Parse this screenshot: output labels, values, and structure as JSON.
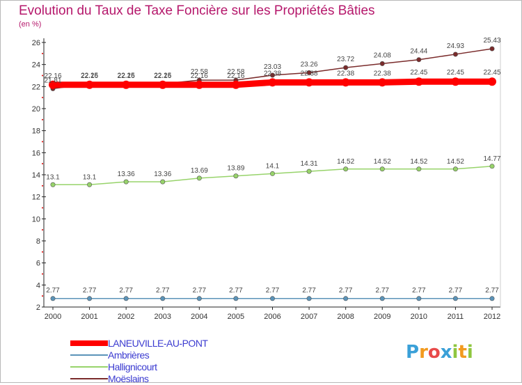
{
  "title": "Evolution du Taux de Taxe Foncière sur les Propriétés Bâties",
  "subtitle": "(en %)",
  "logo": {
    "text": "Proxiti",
    "letters": [
      "P",
      "r",
      "o",
      "x",
      "i",
      "t",
      "i"
    ],
    "colors": [
      "#3aa0d8",
      "#f29a1e",
      "#e84a4a",
      "#3aa0d8",
      "#8fc63f",
      "#f29a1e",
      "#8fc63f"
    ]
  },
  "chart_data": {
    "type": "line",
    "title": "Evolution du Taux de Taxe Foncière sur les Propriétés Bâties",
    "ylabel": "(en %)",
    "xlabel": "",
    "x": [
      "2000",
      "2001",
      "2002",
      "2003",
      "2004",
      "2005",
      "2006",
      "2007",
      "2008",
      "2009",
      "2010",
      "2011",
      "2012"
    ],
    "yticks": [
      "2",
      "4",
      "6",
      "8",
      "10",
      "12",
      "14",
      "16",
      "18",
      "20",
      "22",
      "24",
      "26"
    ],
    "ylim": [
      2,
      26
    ],
    "grid": false,
    "legend_position": "bottom",
    "series": [
      {
        "name": "LANEUVILLE-AU-PONT",
        "color": "#ff0000",
        "values": [
          22.16,
          22.16,
          22.16,
          22.16,
          22.16,
          22.16,
          22.38,
          22.38,
          22.38,
          22.38,
          22.45,
          22.45,
          22.45
        ],
        "labels": [
          "22.16",
          "22.16",
          "22.16",
          "22.16",
          "22.16",
          "22.16",
          "22.38",
          "22.38",
          "22.38",
          "22.38",
          "22.45",
          "22.45",
          "22.45"
        ],
        "style": "thick"
      },
      {
        "name": "Ambrières",
        "color": "#5b93b8",
        "values": [
          2.77,
          2.77,
          2.77,
          2.77,
          2.77,
          2.77,
          2.77,
          2.77,
          2.77,
          2.77,
          2.77,
          2.77,
          2.77
        ],
        "labels": [
          "2.77",
          "2.77",
          "2.77",
          "2.77",
          "2.77",
          "2.77",
          "2.77",
          "2.77",
          "2.77",
          "2.77",
          "2.77",
          "2.77",
          "2.77"
        ],
        "style": "thin"
      },
      {
        "name": "Hallignicourt",
        "color": "#97d36a",
        "values": [
          13.1,
          13.1,
          13.36,
          13.36,
          13.69,
          13.89,
          14.1,
          14.31,
          14.52,
          14.52,
          14.52,
          14.52,
          14.77
        ],
        "labels": [
          "13.1",
          "13.1",
          "13.36",
          "13.36",
          "13.69",
          "13.89",
          "14.1",
          "14.31",
          "14.52",
          "14.52",
          "14.52",
          "14.52",
          "14.77"
        ],
        "style": "thin"
      },
      {
        "name": "Moëslains",
        "color": "#7a2b2b",
        "values": [
          21.81,
          22.25,
          22.25,
          22.25,
          22.58,
          22.58,
          23.03,
          23.26,
          23.72,
          24.08,
          24.44,
          24.93,
          25.43
        ],
        "labels": [
          "21.81",
          "22.25",
          "22.25",
          "22.25",
          "22.58",
          "22.58",
          "23.03",
          "23.26",
          "23.72",
          "24.08",
          "24.44",
          "24.93",
          "25.43"
        ],
        "style": "thin"
      }
    ]
  }
}
